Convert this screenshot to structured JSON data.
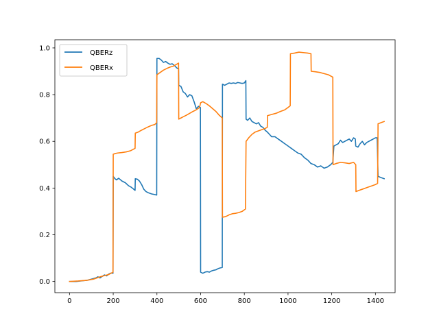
{
  "chart_data": {
    "type": "line",
    "title": "",
    "xlabel": "",
    "ylabel": "",
    "xlim": [
      -67,
      1490
    ],
    "ylim": [
      -0.048,
      1.035
    ],
    "xticks": [
      0,
      200,
      400,
      600,
      800,
      1000,
      1200,
      1400
    ],
    "yticks": [
      0.0,
      0.2,
      0.4,
      0.6,
      0.8,
      1.0
    ],
    "xtick_labels": [
      "0",
      "200",
      "400",
      "600",
      "800",
      "1000",
      "1200",
      "1400"
    ],
    "ytick_labels": [
      "0.0",
      "0.2",
      "0.4",
      "0.6",
      "0.8",
      "1.0"
    ],
    "grid": false,
    "legend_position": "top-left",
    "series": [
      {
        "name": "QBERz",
        "color": "#1f77b4",
        "points": [
          [
            0,
            0.0
          ],
          [
            30,
            0.0
          ],
          [
            60,
            0.003
          ],
          [
            80,
            0.005
          ],
          [
            100,
            0.01
          ],
          [
            120,
            0.015
          ],
          [
            130,
            0.02
          ],
          [
            140,
            0.015
          ],
          [
            150,
            0.022
          ],
          [
            160,
            0.028
          ],
          [
            170,
            0.024
          ],
          [
            180,
            0.032
          ],
          [
            190,
            0.036
          ],
          [
            199,
            0.035
          ],
          [
            200,
            0.45
          ],
          [
            208,
            0.44
          ],
          [
            215,
            0.435
          ],
          [
            225,
            0.442
          ],
          [
            240,
            0.43
          ],
          [
            255,
            0.423
          ],
          [
            270,
            0.41
          ],
          [
            280,
            0.405
          ],
          [
            290,
            0.398
          ],
          [
            300,
            0.39
          ],
          [
            301,
            0.44
          ],
          [
            310,
            0.438
          ],
          [
            320,
            0.43
          ],
          [
            330,
            0.415
          ],
          [
            340,
            0.395
          ],
          [
            350,
            0.385
          ],
          [
            360,
            0.38
          ],
          [
            375,
            0.375
          ],
          [
            390,
            0.372
          ],
          [
            399,
            0.37
          ],
          [
            400,
            0.955
          ],
          [
            410,
            0.955
          ],
          [
            420,
            0.948
          ],
          [
            430,
            0.938
          ],
          [
            440,
            0.942
          ],
          [
            450,
            0.935
          ],
          [
            460,
            0.93
          ],
          [
            470,
            0.932
          ],
          [
            480,
            0.925
          ],
          [
            490,
            0.915
          ],
          [
            499,
            0.91
          ],
          [
            500,
            0.84
          ],
          [
            510,
            0.835
          ],
          [
            520,
            0.812
          ],
          [
            530,
            0.805
          ],
          [
            540,
            0.79
          ],
          [
            550,
            0.8
          ],
          [
            560,
            0.795
          ],
          [
            570,
            0.77
          ],
          [
            580,
            0.74
          ],
          [
            590,
            0.75
          ],
          [
            599,
            0.745
          ],
          [
            600,
            0.04
          ],
          [
            610,
            0.035
          ],
          [
            620,
            0.04
          ],
          [
            630,
            0.042
          ],
          [
            640,
            0.04
          ],
          [
            650,
            0.045
          ],
          [
            660,
            0.048
          ],
          [
            670,
            0.05
          ],
          [
            680,
            0.055
          ],
          [
            690,
            0.058
          ],
          [
            699,
            0.06
          ],
          [
            700,
            0.845
          ],
          [
            710,
            0.84
          ],
          [
            720,
            0.845
          ],
          [
            730,
            0.85
          ],
          [
            740,
            0.848
          ],
          [
            750,
            0.85
          ],
          [
            760,
            0.848
          ],
          [
            770,
            0.852
          ],
          [
            780,
            0.85
          ],
          [
            790,
            0.848
          ],
          [
            800,
            0.85
          ],
          [
            807,
            0.86
          ],
          [
            808,
            0.695
          ],
          [
            815,
            0.69
          ],
          [
            825,
            0.7
          ],
          [
            835,
            0.685
          ],
          [
            845,
            0.68
          ],
          [
            855,
            0.675
          ],
          [
            865,
            0.68
          ],
          [
            875,
            0.665
          ],
          [
            885,
            0.66
          ],
          [
            895,
            0.648
          ],
          [
            905,
            0.64
          ],
          [
            915,
            0.63
          ],
          [
            925,
            0.62
          ],
          [
            940,
            0.62
          ],
          [
            955,
            0.61
          ],
          [
            970,
            0.6
          ],
          [
            985,
            0.59
          ],
          [
            1000,
            0.58
          ],
          [
            1015,
            0.57
          ],
          [
            1030,
            0.56
          ],
          [
            1045,
            0.55
          ],
          [
            1060,
            0.545
          ],
          [
            1075,
            0.53
          ],
          [
            1090,
            0.52
          ],
          [
            1105,
            0.505
          ],
          [
            1120,
            0.5
          ],
          [
            1135,
            0.49
          ],
          [
            1150,
            0.495
          ],
          [
            1165,
            0.485
          ],
          [
            1180,
            0.49
          ],
          [
            1195,
            0.5
          ],
          [
            1205,
            0.51
          ],
          [
            1210,
            0.58
          ],
          [
            1220,
            0.585
          ],
          [
            1230,
            0.59
          ],
          [
            1240,
            0.605
          ],
          [
            1250,
            0.595
          ],
          [
            1260,
            0.6
          ],
          [
            1270,
            0.605
          ],
          [
            1280,
            0.61
          ],
          [
            1290,
            0.6
          ],
          [
            1300,
            0.615
          ],
          [
            1308,
            0.61
          ],
          [
            1310,
            0.58
          ],
          [
            1320,
            0.575
          ],
          [
            1330,
            0.59
          ],
          [
            1340,
            0.6
          ],
          [
            1350,
            0.585
          ],
          [
            1360,
            0.595
          ],
          [
            1370,
            0.6
          ],
          [
            1380,
            0.605
          ],
          [
            1390,
            0.61
          ],
          [
            1400,
            0.615
          ],
          [
            1408,
            0.615
          ],
          [
            1412,
            0.45
          ],
          [
            1425,
            0.445
          ],
          [
            1440,
            0.44
          ]
        ]
      },
      {
        "name": "QBERx",
        "color": "#ff7f0e",
        "points": [
          [
            0,
            0.0
          ],
          [
            40,
            0.002
          ],
          [
            80,
            0.005
          ],
          [
            110,
            0.01
          ],
          [
            140,
            0.02
          ],
          [
            160,
            0.025
          ],
          [
            180,
            0.03
          ],
          [
            199,
            0.04
          ],
          [
            200,
            0.545
          ],
          [
            210,
            0.548
          ],
          [
            220,
            0.55
          ],
          [
            240,
            0.552
          ],
          [
            260,
            0.555
          ],
          [
            280,
            0.56
          ],
          [
            300,
            0.57
          ],
          [
            301,
            0.635
          ],
          [
            315,
            0.64
          ],
          [
            330,
            0.648
          ],
          [
            345,
            0.655
          ],
          [
            360,
            0.662
          ],
          [
            375,
            0.668
          ],
          [
            390,
            0.672
          ],
          [
            399,
            0.68
          ],
          [
            400,
            0.885
          ],
          [
            415,
            0.895
          ],
          [
            430,
            0.905
          ],
          [
            445,
            0.912
          ],
          [
            460,
            0.918
          ],
          [
            475,
            0.922
          ],
          [
            490,
            0.93
          ],
          [
            499,
            0.935
          ],
          [
            500,
            0.695
          ],
          [
            510,
            0.7
          ],
          [
            520,
            0.705
          ],
          [
            535,
            0.712
          ],
          [
            550,
            0.72
          ],
          [
            565,
            0.728
          ],
          [
            580,
            0.735
          ],
          [
            595,
            0.745
          ],
          [
            600,
            0.765
          ],
          [
            610,
            0.77
          ],
          [
            625,
            0.762
          ],
          [
            640,
            0.752
          ],
          [
            655,
            0.74
          ],
          [
            670,
            0.728
          ],
          [
            685,
            0.712
          ],
          [
            699,
            0.7
          ],
          [
            700,
            0.275
          ],
          [
            715,
            0.278
          ],
          [
            730,
            0.285
          ],
          [
            745,
            0.29
          ],
          [
            760,
            0.292
          ],
          [
            775,
            0.295
          ],
          [
            790,
            0.3
          ],
          [
            805,
            0.31
          ],
          [
            808,
            0.6
          ],
          [
            820,
            0.615
          ],
          [
            835,
            0.63
          ],
          [
            850,
            0.64
          ],
          [
            865,
            0.645
          ],
          [
            880,
            0.65
          ],
          [
            895,
            0.655
          ],
          [
            905,
            0.66
          ],
          [
            906,
            0.71
          ],
          [
            925,
            0.715
          ],
          [
            945,
            0.72
          ],
          [
            965,
            0.728
          ],
          [
            985,
            0.735
          ],
          [
            1000,
            0.745
          ],
          [
            1010,
            0.752
          ],
          [
            1011,
            0.975
          ],
          [
            1030,
            0.978
          ],
          [
            1050,
            0.982
          ],
          [
            1070,
            0.98
          ],
          [
            1090,
            0.978
          ],
          [
            1105,
            0.975
          ],
          [
            1106,
            0.9
          ],
          [
            1125,
            0.898
          ],
          [
            1145,
            0.895
          ],
          [
            1165,
            0.89
          ],
          [
            1185,
            0.885
          ],
          [
            1205,
            0.875
          ],
          [
            1206,
            0.5
          ],
          [
            1220,
            0.505
          ],
          [
            1240,
            0.51
          ],
          [
            1260,
            0.508
          ],
          [
            1280,
            0.505
          ],
          [
            1300,
            0.51
          ],
          [
            1310,
            0.5
          ],
          [
            1311,
            0.385
          ],
          [
            1325,
            0.39
          ],
          [
            1340,
            0.395
          ],
          [
            1355,
            0.4
          ],
          [
            1370,
            0.405
          ],
          [
            1385,
            0.41
          ],
          [
            1400,
            0.415
          ],
          [
            1410,
            0.42
          ],
          [
            1412,
            0.675
          ],
          [
            1425,
            0.68
          ],
          [
            1440,
            0.685
          ]
        ]
      }
    ]
  }
}
